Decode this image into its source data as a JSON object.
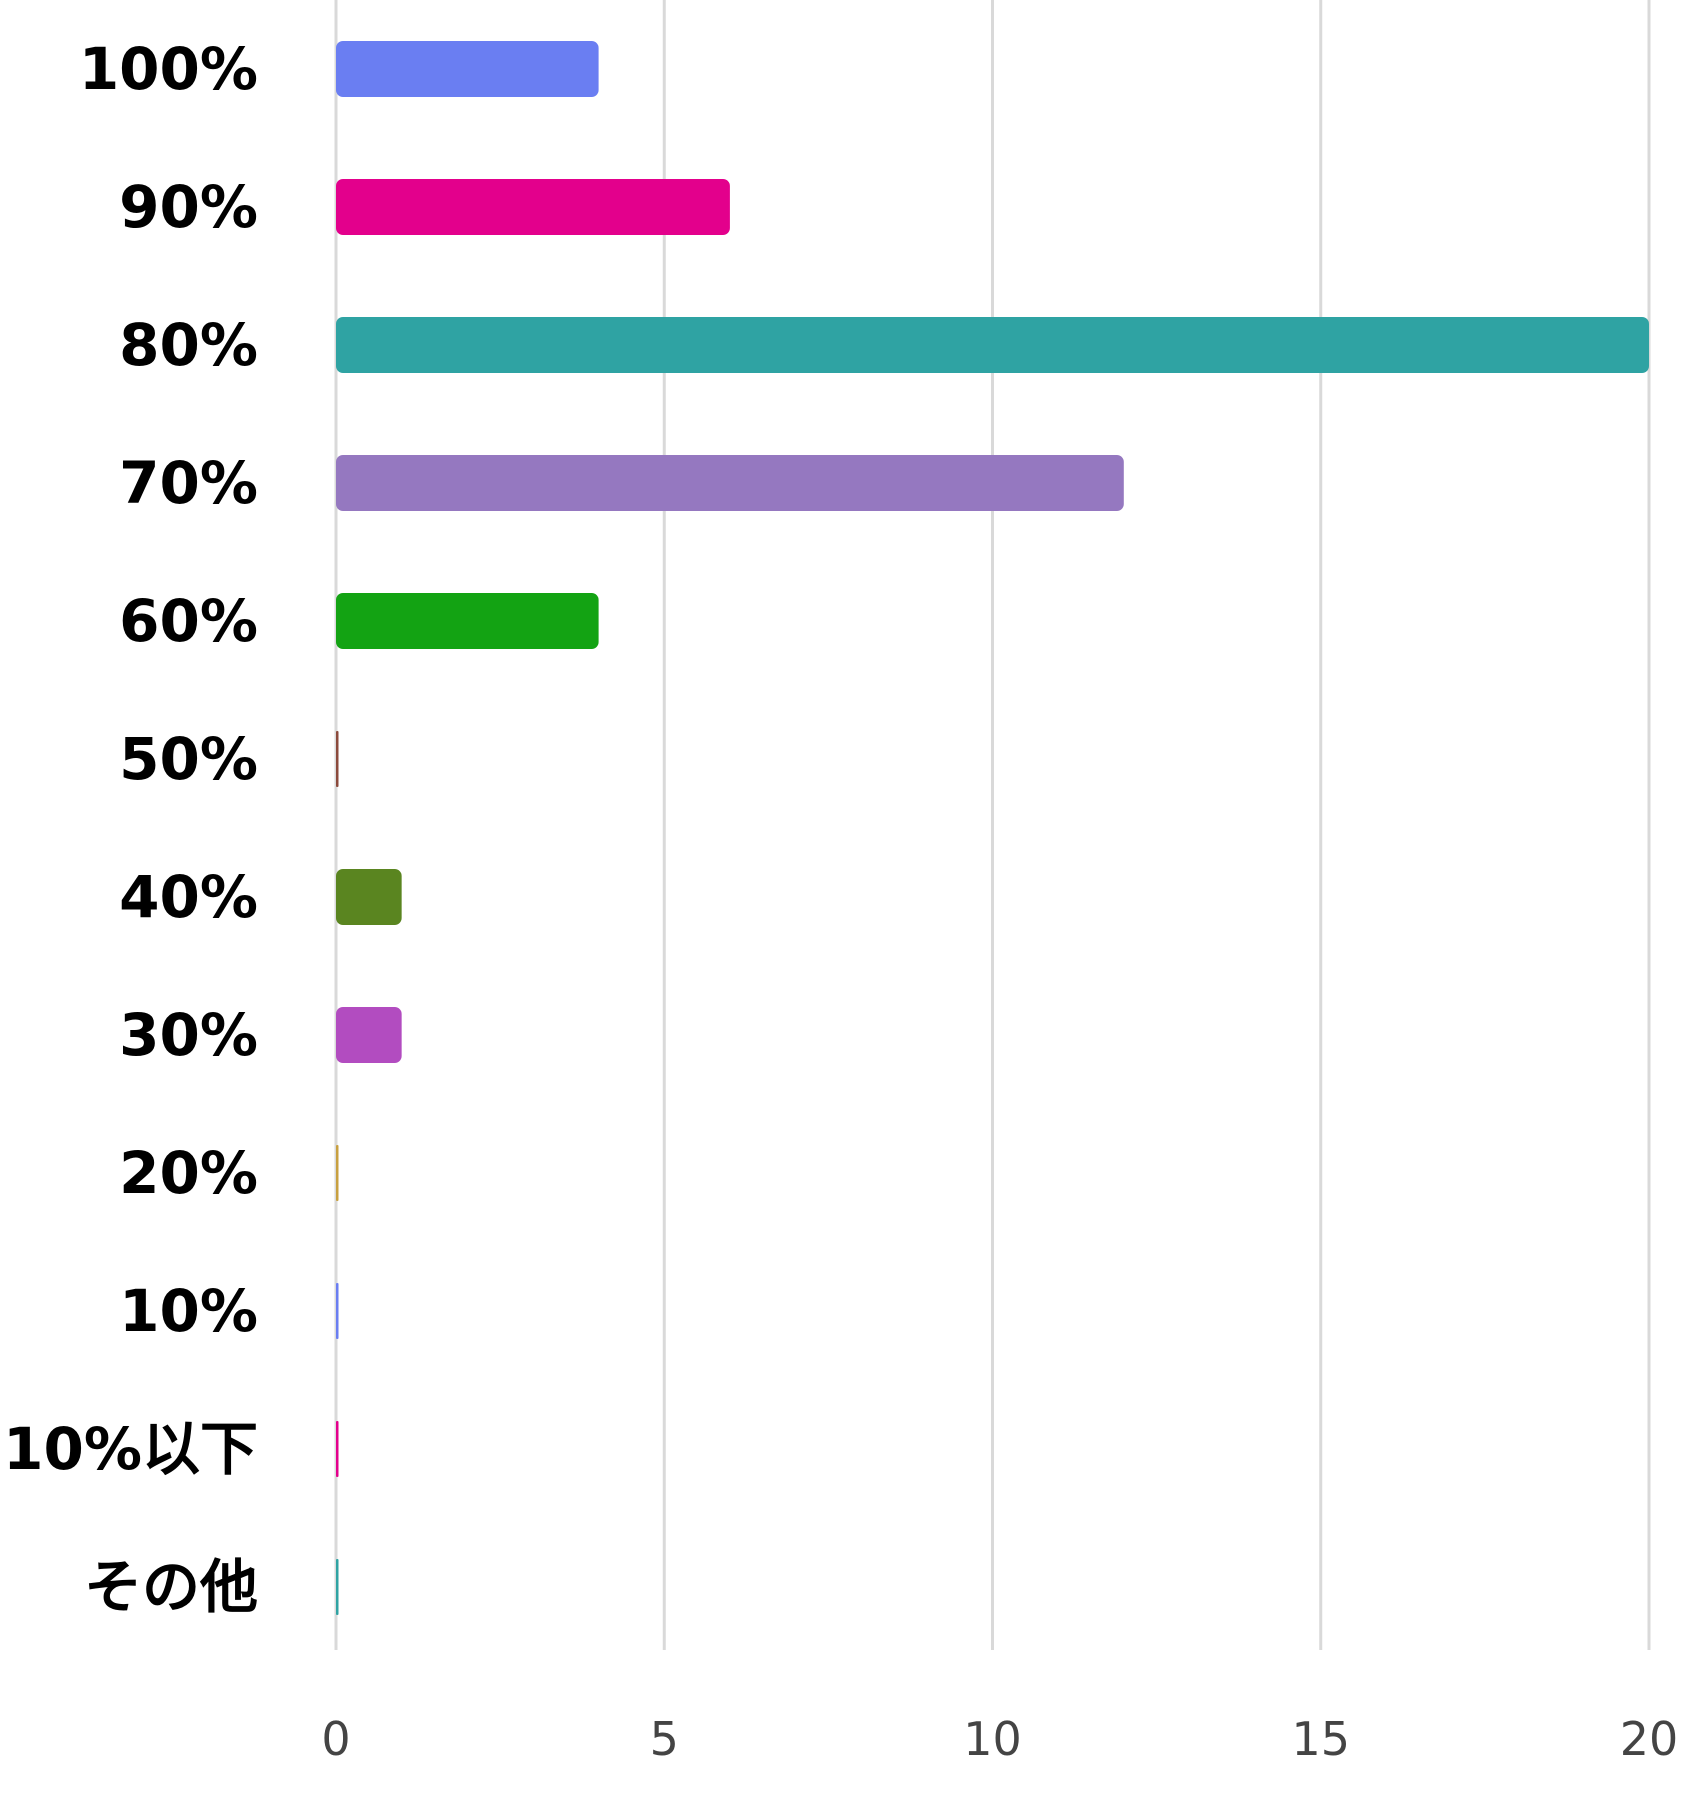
{
  "chart_data": {
    "type": "bar",
    "orientation": "horizontal",
    "title": "",
    "xlabel": "",
    "ylabel": "",
    "categories": [
      "100%",
      "90%",
      "80%",
      "70%",
      "60%",
      "50%",
      "40%",
      "30%",
      "20%",
      "10%",
      "10%以下",
      "その他"
    ],
    "values": [
      4,
      6,
      20,
      12,
      4,
      0,
      1,
      1,
      0,
      0,
      0,
      0
    ],
    "colors": [
      "#6a7ef2",
      "#e3008c",
      "#2fa3a3",
      "#9578c0",
      "#13a313",
      "#8b4a3c",
      "#5a8520",
      "#b24cc0",
      "#c8a040",
      "#6a7ef2",
      "#e3008c",
      "#2fa3a3"
    ],
    "xlim": [
      0,
      20
    ],
    "xticks": [
      "0",
      "5",
      "10",
      "15",
      "20"
    ],
    "grid": true,
    "legend": "none"
  }
}
